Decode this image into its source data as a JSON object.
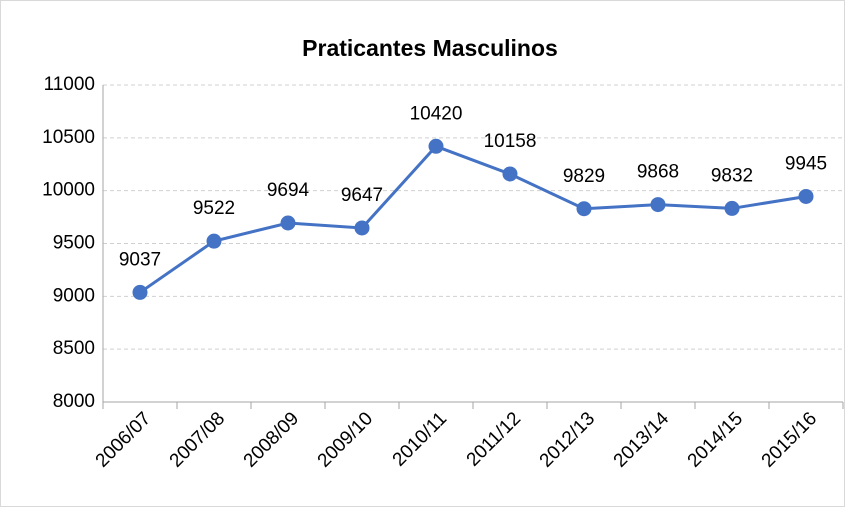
{
  "chart_data": {
    "type": "line",
    "title": "Praticantes Masculinos",
    "categories": [
      "2006/07",
      "2007/08",
      "2008/09",
      "2009/10",
      "2010/11",
      "2011/12",
      "2012/13",
      "2013/14",
      "2014/15",
      "2015/16"
    ],
    "series": [
      {
        "name": "Praticantes Masculinos",
        "color": "#4472c4",
        "values": [
          9037,
          9522,
          9694,
          9647,
          10420,
          10158,
          9829,
          9868,
          9832,
          9945
        ]
      }
    ],
    "ylim": [
      8000,
      11000
    ],
    "yticks": [
      8000,
      8500,
      9000,
      9500,
      10000,
      10500,
      11000
    ],
    "grid": true
  }
}
